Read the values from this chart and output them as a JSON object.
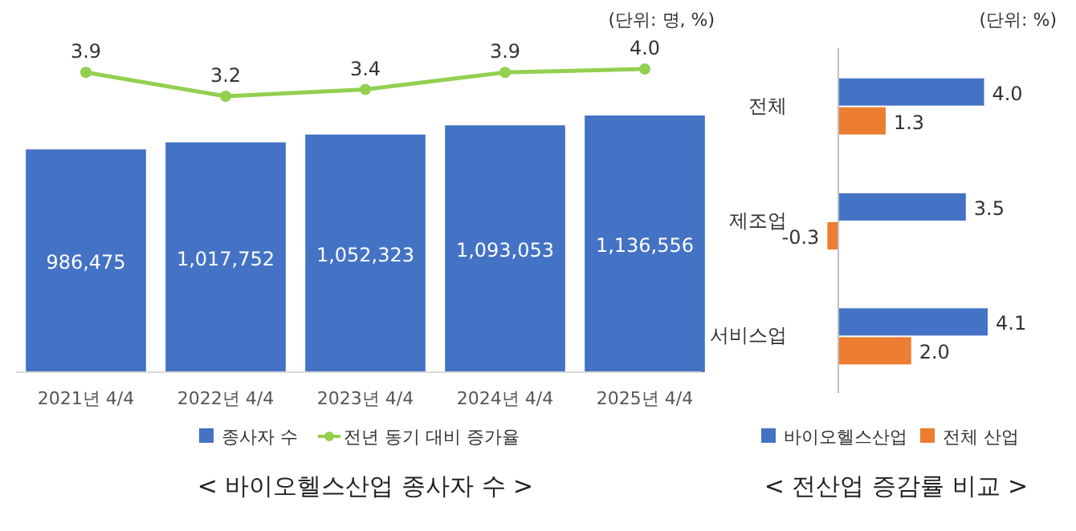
{
  "chart_data": [
    {
      "type": "bar",
      "categories": [
        "2021년 4/4",
        "2022년 4/4",
        "2023년 4/4",
        "2024년 4/4",
        "2025년 4/4"
      ],
      "series": [
        {
          "name": "종사자 수",
          "color": "#4472c4",
          "values": [
            986475,
            1017752,
            1052323,
            1093053,
            1136556
          ],
          "value_labels": [
            "986,475",
            "1,017,752",
            "1,052,323",
            "1,093,053",
            "1,136,556"
          ]
        }
      ],
      "legend": "bottom",
      "tick_labels": "x",
      "annotations": [
        "(단위: 명, %)"
      ],
      "title": "< 바이오헬스산업 종사자 수 >"
    },
    {
      "type": "line",
      "categories": [
        null,
        null,
        null,
        null,
        null
      ],
      "series": [
        {
          "name": "전년 동기 대비 증가율",
          "color": "#92d050",
          "marker": "circle",
          "values": [
            3.9,
            3.2,
            3.4,
            3.9,
            4.0
          ],
          "value_labels": [
            "3.9",
            "3.2",
            "3.4",
            "3.9",
            "4.0"
          ]
        }
      ],
      "legend": "bottom",
      "tick_labels": false
    },
    {
      "type": "bar",
      "orientation": "horizontal",
      "title": "< 전산업 증감률 비교 >",
      "categories": [
        "전체",
        "제조업",
        "서비스업"
      ],
      "series": [
        {
          "name": "바이오헬스산업",
          "color": "#4472c4",
          "values": [
            4.0,
            3.5,
            4.1
          ],
          "value_labels": [
            "4.0",
            "3.5",
            "4.1"
          ]
        },
        {
          "name": "전체 산업",
          "color": "#ed7d31",
          "values": [
            1.3,
            -0.3,
            2.0
          ],
          "value_labels": [
            "1.3",
            "-0.3",
            "2.0"
          ]
        }
      ],
      "legend": "bottom",
      "tick_labels": "y",
      "annotations": [
        "(단위: %)"
      ]
    }
  ]
}
